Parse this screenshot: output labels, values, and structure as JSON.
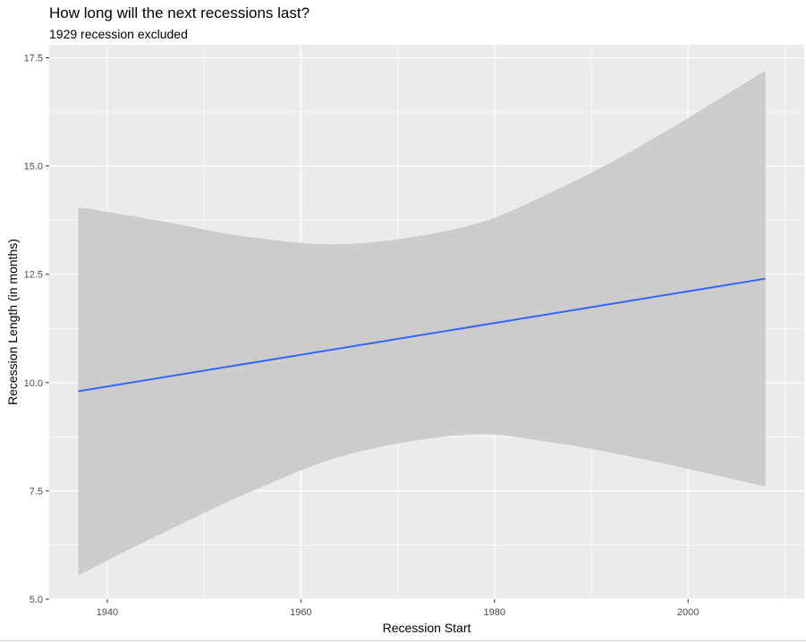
{
  "chart_data": {
    "type": "line",
    "title": "How long will the next recessions last?",
    "subtitle": "1929 recession excluded",
    "xlabel": "Recession Start",
    "ylabel": "Recession Length (in months)",
    "xlim": [
      1934,
      2012
    ],
    "ylim": [
      5.0,
      17.8
    ],
    "x_ticks": [
      1940,
      1960,
      1980,
      2000
    ],
    "x_tick_labels": [
      "1940",
      "1960",
      "1980",
      "2000"
    ],
    "y_ticks": [
      5.0,
      7.5,
      10.0,
      12.5,
      15.0,
      17.5
    ],
    "y_tick_labels": [
      "5.0",
      "7.5",
      "10.0",
      "12.5",
      "15.0",
      "17.5"
    ],
    "grid": true,
    "legend": "none",
    "series": [
      {
        "kind": "line",
        "x": [
          1937,
          2008
        ],
        "y": [
          9.8,
          12.4
        ]
      },
      {
        "kind": "confidence-band",
        "x": [
          1937,
          1945,
          1955,
          1965,
          1977,
          1985,
          1995,
          2008
        ],
        "upper": [
          14.05,
          13.75,
          13.35,
          13.2,
          13.6,
          14.3,
          15.45,
          17.2
        ],
        "lower": [
          5.55,
          6.45,
          7.5,
          8.35,
          8.8,
          8.65,
          8.25,
          7.6
        ]
      }
    ],
    "colors": {
      "panel": "#ebebeb",
      "grid_major": "#ffffff",
      "band": "#cccccc",
      "line": "#3366ff",
      "tick": "#333333"
    }
  }
}
